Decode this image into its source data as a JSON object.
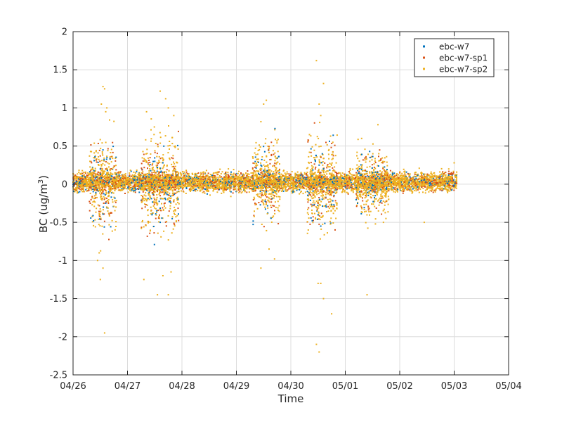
{
  "chart_data": {
    "type": "scatter",
    "title": "",
    "xlabel": "Time",
    "ylabel": "BC (ug/m",
    "ylabel_sup": "3",
    "ylabel_tail": ")",
    "xlim": [
      "04/26",
      "05/04"
    ],
    "ylim": [
      -2.5,
      2
    ],
    "x_ticks": [
      "04/26",
      "04/27",
      "04/28",
      "04/29",
      "04/30",
      "05/01",
      "05/02",
      "05/03",
      "05/04"
    ],
    "y_ticks": [
      -2.5,
      -2,
      -1.5,
      -1,
      -0.5,
      0,
      0.5,
      1,
      1.5,
      2
    ],
    "y_tick_labels": [
      "-2.5",
      "-2",
      "-1.5",
      "-1",
      "-0.5",
      "0",
      "0.5",
      "1",
      "1.5",
      "2"
    ],
    "grid": true,
    "legend_position": "top-right",
    "series": [
      {
        "name": "ebc-w7",
        "color": "#0072BD",
        "points": [
          [
            0.55,
            0.45
          ],
          [
            0.57,
            0.32
          ],
          [
            0.5,
            0.2
          ],
          [
            0.6,
            -0.25
          ],
          [
            0.63,
            0.18
          ],
          [
            1.5,
            0.3
          ],
          [
            1.55,
            0.22
          ],
          [
            1.45,
            -0.4
          ],
          [
            1.6,
            -0.5
          ],
          [
            1.65,
            0.28
          ],
          [
            1.7,
            -0.2
          ],
          [
            3.45,
            0.25
          ],
          [
            3.5,
            0.18
          ],
          [
            3.55,
            -0.1
          ],
          [
            3.6,
            0.12
          ],
          [
            4.45,
            0.3
          ],
          [
            4.5,
            -0.4
          ],
          [
            4.52,
            0.25
          ],
          [
            4.55,
            -0.55
          ],
          [
            4.6,
            0.2
          ],
          [
            4.65,
            -0.3
          ],
          [
            5.5,
            0.15
          ],
          [
            5.55,
            -0.15
          ],
          [
            5.6,
            0.1
          ],
          [
            6.4,
            0.05
          ],
          [
            6.9,
            0.12
          ]
        ]
      },
      {
        "name": "ebc-w7-sp1",
        "color": "#D95319",
        "points": [
          [
            0.5,
            0.15
          ],
          [
            0.55,
            -0.1
          ],
          [
            0.6,
            0.2
          ],
          [
            0.65,
            -0.25
          ],
          [
            0.45,
            0.05
          ],
          [
            1.45,
            0.15
          ],
          [
            1.5,
            -0.2
          ],
          [
            1.55,
            0.25
          ],
          [
            1.6,
            -0.15
          ],
          [
            1.7,
            0.1
          ],
          [
            3.5,
            0.1
          ],
          [
            3.55,
            -0.08
          ],
          [
            3.45,
            0.15
          ],
          [
            4.45,
            0.2
          ],
          [
            4.5,
            -0.25
          ],
          [
            4.55,
            0.15
          ],
          [
            4.6,
            -0.1
          ],
          [
            5.5,
            0.08
          ],
          [
            5.55,
            -0.1
          ],
          [
            6.2,
            0.05
          ],
          [
            6.5,
            0.02
          ],
          [
            6.95,
            0.15
          ]
        ]
      },
      {
        "name": "ebc-w7-sp2",
        "color": "#EDB120",
        "points": [
          [
            0.55,
            1.28
          ],
          [
            0.58,
            1.25
          ],
          [
            0.52,
            1.05
          ],
          [
            0.62,
            1.0
          ],
          [
            0.6,
            0.95
          ],
          [
            0.48,
            -0.9
          ],
          [
            0.45,
            -1.0
          ],
          [
            0.55,
            -1.1
          ],
          [
            0.5,
            -1.25
          ],
          [
            0.58,
            -1.95
          ],
          [
            1.35,
            0.95
          ],
          [
            1.6,
            1.22
          ],
          [
            1.7,
            1.12
          ],
          [
            1.75,
            1.0
          ],
          [
            1.65,
            -1.2
          ],
          [
            1.55,
            -1.45
          ],
          [
            1.75,
            -1.45
          ],
          [
            1.3,
            -1.25
          ],
          [
            1.8,
            -1.15
          ],
          [
            1.85,
            0.9
          ],
          [
            3.5,
            1.05
          ],
          [
            3.55,
            1.1
          ],
          [
            3.45,
            0.82
          ],
          [
            3.45,
            -1.1
          ],
          [
            3.7,
            -0.98
          ],
          [
            3.6,
            -0.85
          ],
          [
            4.47,
            1.62
          ],
          [
            4.6,
            1.32
          ],
          [
            4.52,
            1.05
          ],
          [
            4.55,
            0.9
          ],
          [
            4.5,
            -1.3
          ],
          [
            4.6,
            -1.5
          ],
          [
            4.55,
            -1.3
          ],
          [
            4.47,
            -2.1
          ],
          [
            4.52,
            -2.2
          ],
          [
            4.75,
            -1.7
          ],
          [
            5.3,
            0.6
          ],
          [
            5.6,
            0.78
          ],
          [
            5.4,
            -1.45
          ],
          [
            5.7,
            -0.5
          ],
          [
            6.3,
            0.1
          ],
          [
            6.45,
            -0.5
          ],
          [
            6.9,
            0.2
          ],
          [
            7.0,
            0.28
          ]
        ]
      }
    ],
    "dense_bands": [
      {
        "x_start": 0.0,
        "x_end": 7.05,
        "y_center": 0.03,
        "spread": 0.12
      },
      {
        "x_start": 0.3,
        "x_end": 0.8,
        "y_center": 0.0,
        "spread": 0.55
      },
      {
        "x_start": 1.25,
        "x_end": 1.95,
        "y_center": 0.0,
        "spread": 0.6
      },
      {
        "x_start": 3.3,
        "x_end": 3.8,
        "y_center": 0.05,
        "spread": 0.5
      },
      {
        "x_start": 4.3,
        "x_end": 4.85,
        "y_center": 0.0,
        "spread": 0.6
      },
      {
        "x_start": 5.2,
        "x_end": 5.8,
        "y_center": 0.0,
        "spread": 0.4
      }
    ]
  }
}
